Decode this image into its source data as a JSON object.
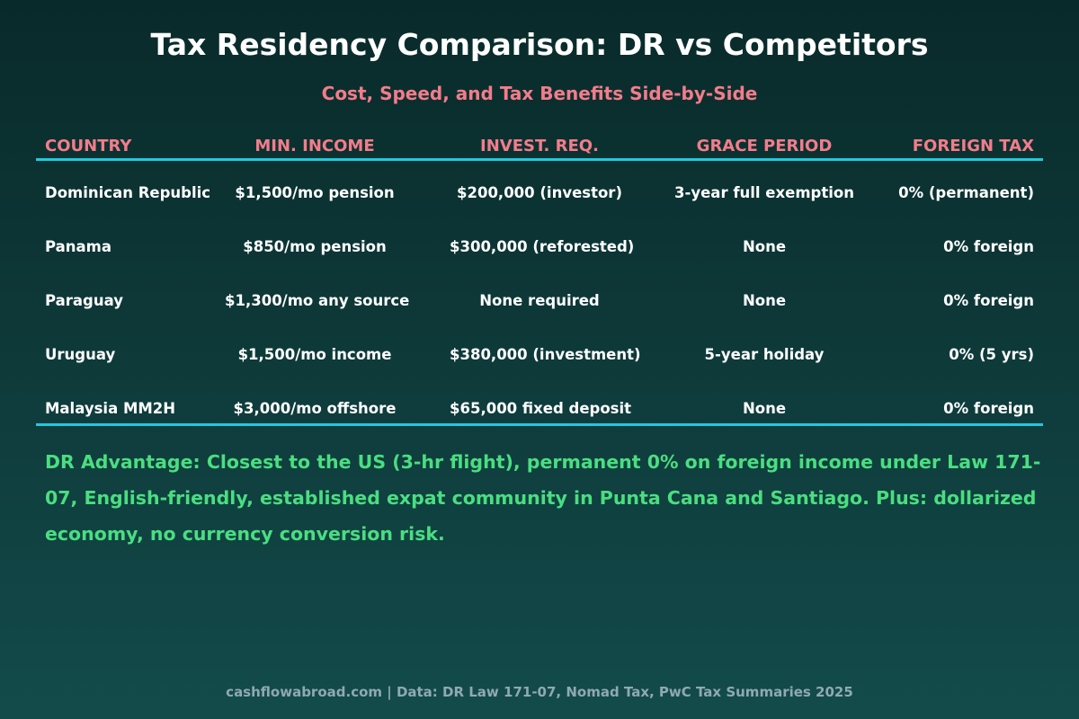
{
  "title": "Tax Residency Comparison: DR vs Competitors",
  "subtitle": "Cost, Speed, and Tax Benefits Side-by-Side",
  "table": {
    "headers": [
      "COUNTRY",
      "MIN. INCOME",
      "INVEST. REQ.",
      "GRACE PERIOD",
      "FOREIGN TAX"
    ],
    "rows": [
      [
        "Dominican Republic",
        "$1,500/mo pension",
        "$200,000 (investor)",
        "3-year full exemption",
        "0% (permanent)"
      ],
      [
        "Panama",
        "$850/mo pension",
        "$300,000 (reforested)",
        "None",
        "0% foreign"
      ],
      [
        "Paraguay",
        "$1,300/mo any source",
        "None required",
        "None",
        "0% foreign"
      ],
      [
        "Uruguay",
        "$1,500/mo income",
        "$380,000 (investment)",
        "5-year holiday",
        "0% (5 yrs)"
      ],
      [
        "Malaysia MM2H",
        "$3,000/mo offshore",
        "$65,000 fixed deposit",
        "None",
        "0% foreign"
      ]
    ]
  },
  "advantage": "DR Advantage: Closest to the US (3-hr flight), permanent 0% on foreign income under Law 171-07, English-friendly, established expat community in Punta Cana and Santiago. Plus: dollarized economy, no currency conversion risk.",
  "footer": "cashflowabroad.com | Data: DR Law 171-07, Nomad Tax, PwC Tax Summaries 2025",
  "colors": {
    "heading": "#f47c8a",
    "rule": "#22c8e0",
    "advantage": "#4ade80",
    "footer": "#8fa9b3"
  }
}
